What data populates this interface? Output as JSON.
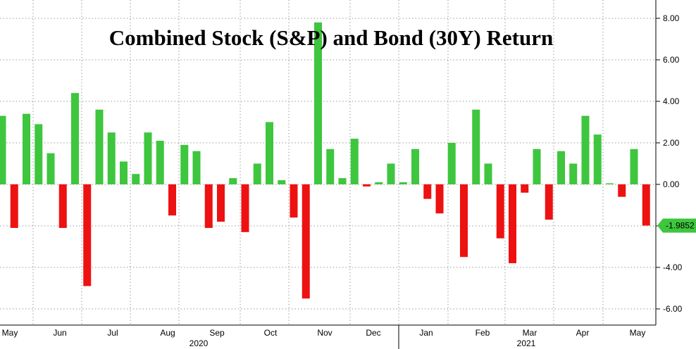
{
  "chart_data": {
    "type": "bar",
    "title": "Combined Stock (S&P) and Bond (30Y) Return",
    "xlabel": "",
    "ylabel": "",
    "ylim": [
      -7.0,
      8.6
    ],
    "yticks": [
      8,
      6,
      4,
      2,
      0,
      -2,
      -4,
      -6
    ],
    "ytick_labels": [
      "8.00",
      "6.00",
      "4.00",
      "2.00",
      "0.00",
      "",
      "-4.00",
      "-6.00"
    ],
    "grid": true,
    "y_axis_side": "right",
    "positive_color": "#3ec63e",
    "negative_color": "#ee1111",
    "last_value": -1.9852,
    "last_value_label": "-1.9852",
    "last_value_color": "#3ec63e",
    "months": [
      "May",
      "Jun",
      "Jul",
      "Aug",
      "Sep",
      "Oct",
      "Nov",
      "Dec",
      "Jan",
      "Feb",
      "Mar",
      "Apr",
      "May"
    ],
    "years": [
      "2020",
      "2021"
    ],
    "values": [
      3.3,
      -2.1,
      3.4,
      2.9,
      1.5,
      -2.1,
      4.4,
      -4.9,
      3.6,
      2.5,
      1.1,
      0.5,
      2.5,
      2.1,
      -1.5,
      1.9,
      1.6,
      -2.1,
      -1.8,
      0.3,
      -2.3,
      1.0,
      3.0,
      0.2,
      -1.6,
      -5.5,
      7.8,
      1.7,
      0.3,
      2.2,
      -0.1,
      0.1,
      1.0,
      0.1,
      1.7,
      -0.7,
      -1.4,
      2.0,
      -3.5,
      3.6,
      1.0,
      -2.6,
      -3.8,
      -0.4,
      1.7,
      -1.7,
      1.6,
      1.0,
      3.3,
      2.4,
      0.05,
      -0.6,
      1.7,
      -1.9852
    ]
  }
}
